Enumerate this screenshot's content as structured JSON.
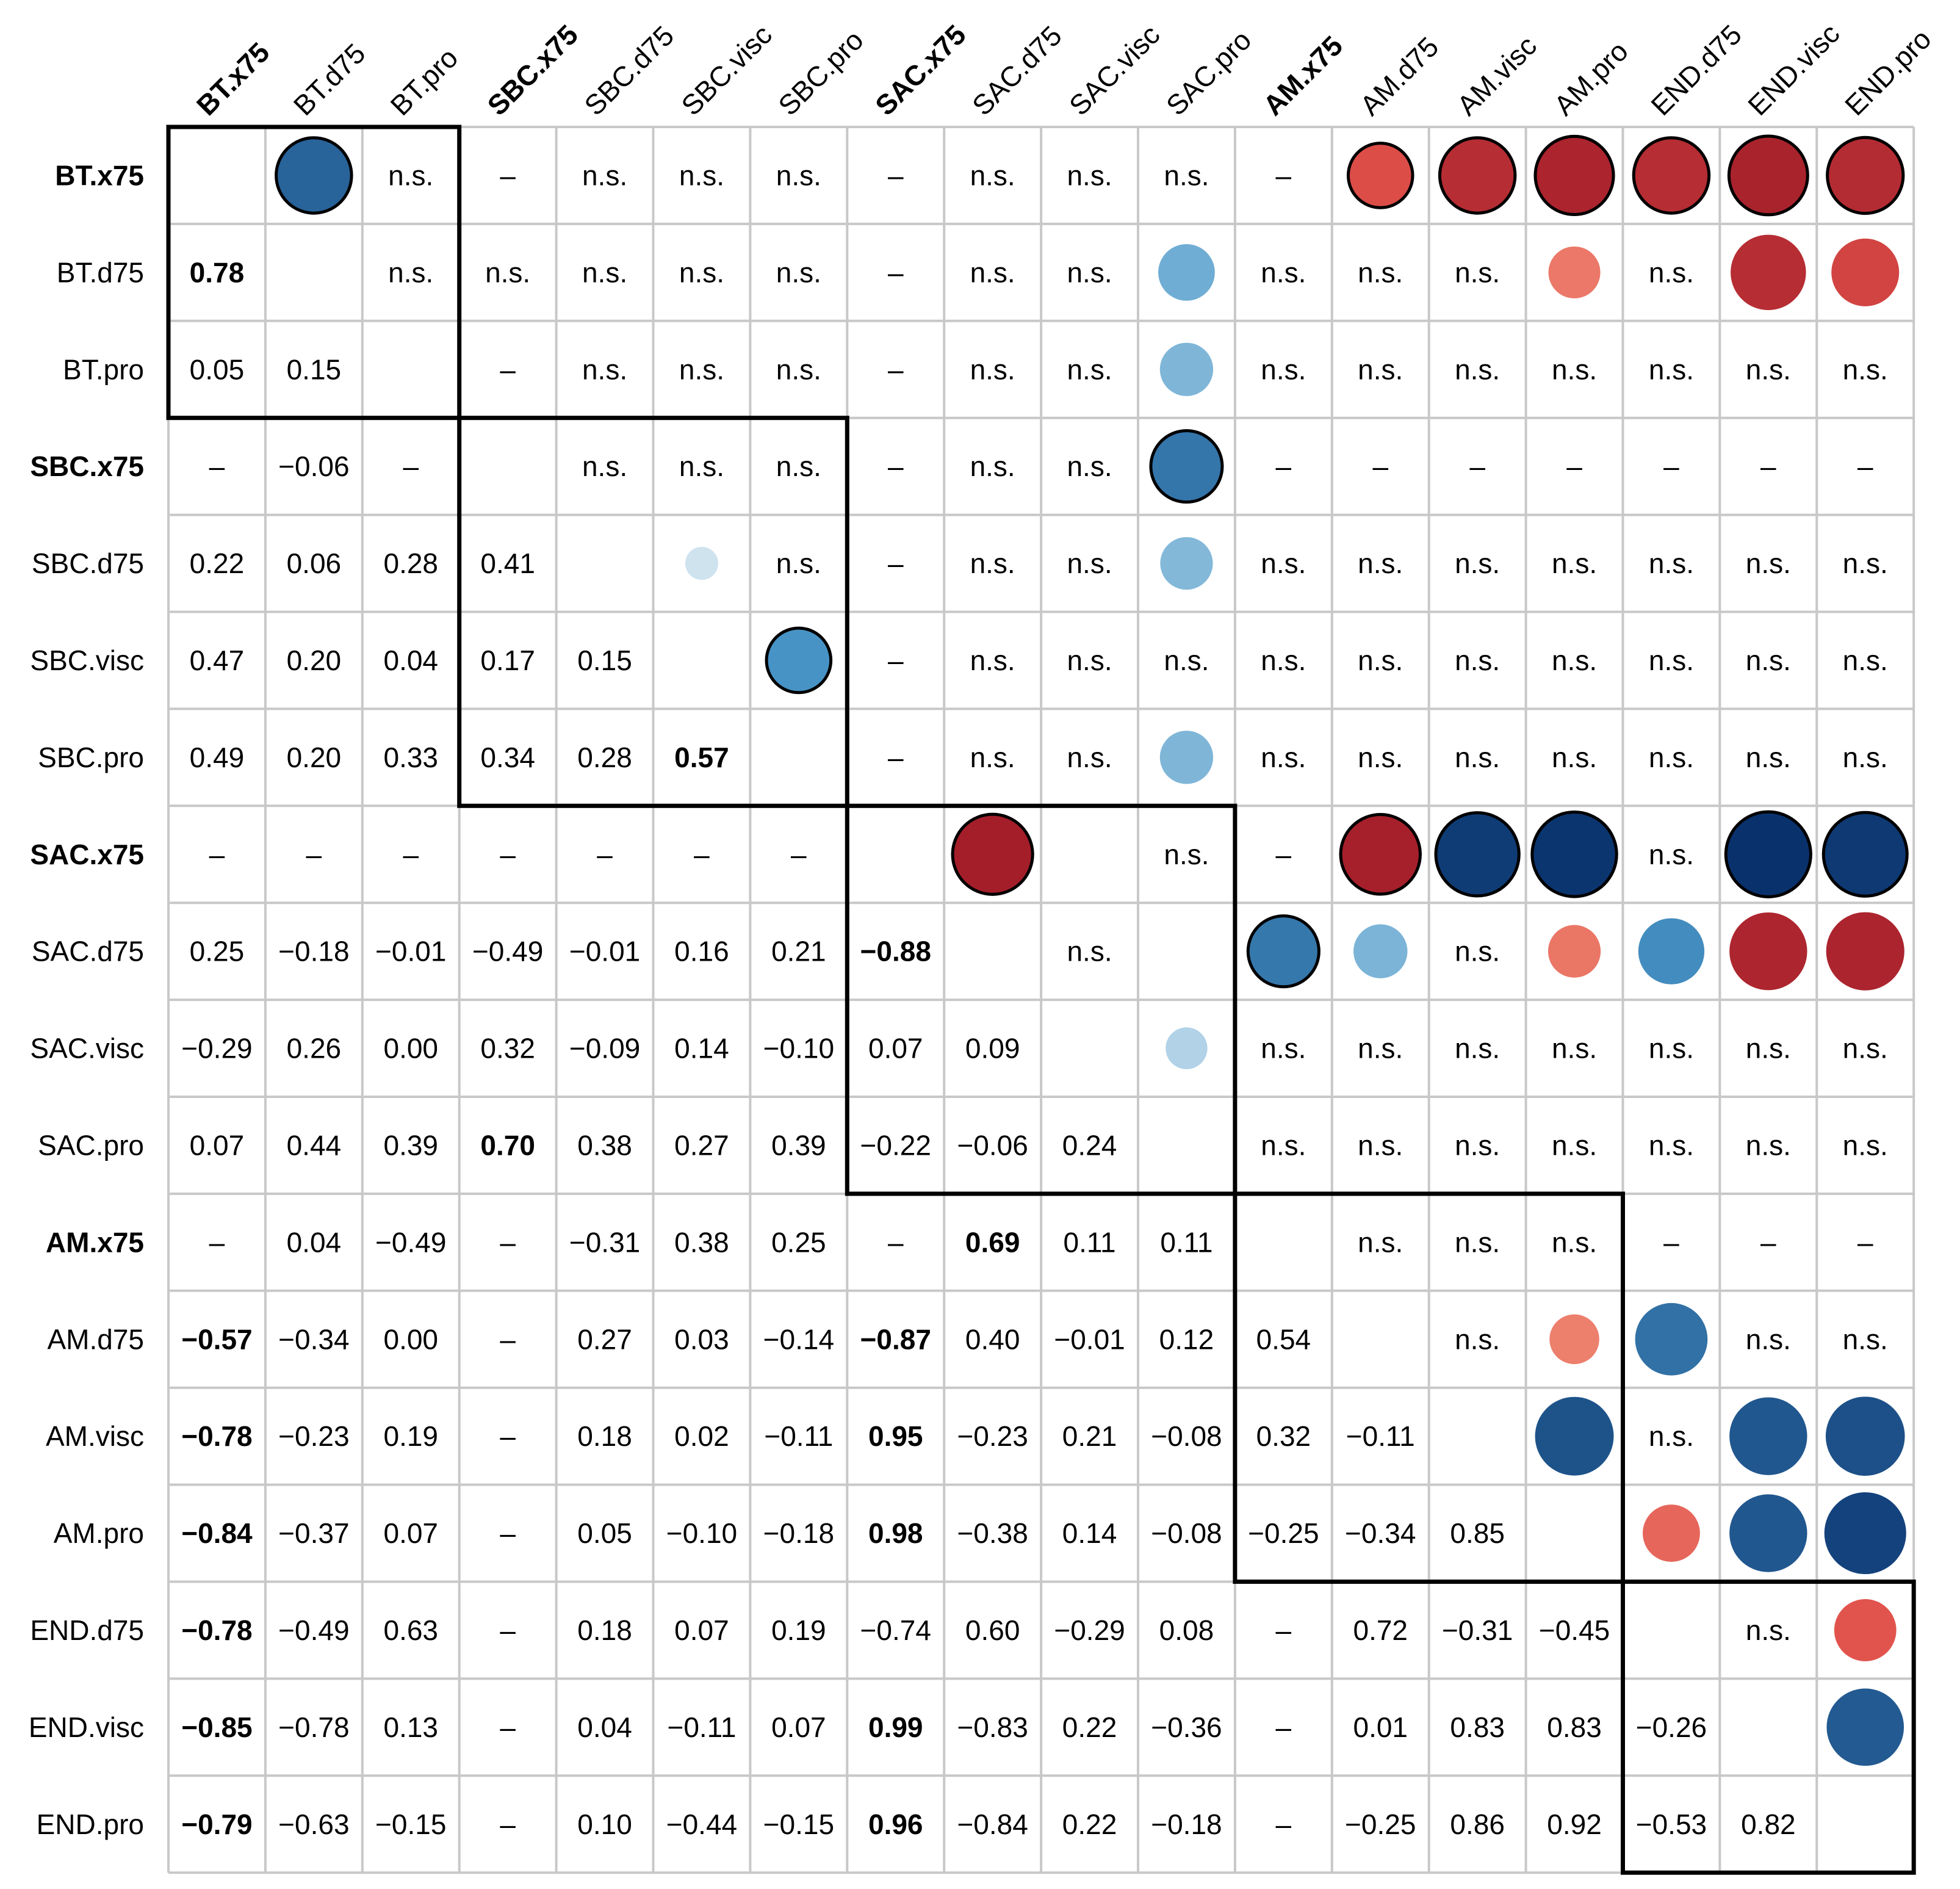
{
  "chart_data": {
    "type": "heatmap",
    "title": "",
    "variables": [
      "BT.x75",
      "BT.d75",
      "BT.pro",
      "SBC.x75",
      "SBC.d75",
      "SBC.visc",
      "SBC.pro",
      "SAC.x75",
      "SAC.d75",
      "SAC.visc",
      "SAC.pro",
      "AM.x75",
      "AM.d75",
      "AM.visc",
      "AM.pro",
      "END.d75",
      "END.visc",
      "END.pro"
    ],
    "bold_labels": [
      "BT.x75",
      "SBC.x75",
      "SAC.x75",
      "AM.x75"
    ],
    "groups": [
      {
        "name": "BT",
        "start": 0,
        "end": 2
      },
      {
        "name": "SBC",
        "start": 3,
        "end": 6
      },
      {
        "name": "SAC",
        "start": 7,
        "end": 10
      },
      {
        "name": "AM",
        "start": 11,
        "end": 14
      },
      {
        "name": "END",
        "start": 15,
        "end": 17
      }
    ],
    "lower_triangle": [
      [],
      [
        "0.78"
      ],
      [
        "0.05",
        "0.15"
      ],
      [
        "–",
        "−0.06",
        "–"
      ],
      [
        "0.22",
        "0.06",
        "0.28",
        "0.41"
      ],
      [
        "0.47",
        "0.20",
        "0.04",
        "0.17",
        "0.15"
      ],
      [
        "0.49",
        "0.20",
        "0.33",
        "0.34",
        "0.28",
        "0.57"
      ],
      [
        "–",
        "–",
        "–",
        "–",
        "–",
        "–",
        "–"
      ],
      [
        "0.25",
        "−0.18",
        "−0.01",
        "−0.49",
        "−0.01",
        "0.16",
        "0.21",
        "−0.88"
      ],
      [
        "−0.29",
        "0.26",
        "0.00",
        "0.32",
        "−0.09",
        "0.14",
        "−0.10",
        "0.07",
        "0.09"
      ],
      [
        "0.07",
        "0.44",
        "0.39",
        "0.70",
        "0.38",
        "0.27",
        "0.39",
        "−0.22",
        "−0.06",
        "0.24"
      ],
      [
        "–",
        "0.04",
        "−0.49",
        "–",
        "−0.31",
        "0.38",
        "0.25",
        "–",
        "0.69",
        "0.11",
        "0.11"
      ],
      [
        "−0.57",
        "−0.34",
        "0.00",
        "–",
        "0.27",
        "0.03",
        "−0.14",
        "−0.87",
        "0.40",
        "−0.01",
        "0.12",
        "0.54"
      ],
      [
        "−0.78",
        "−0.23",
        "0.19",
        "–",
        "0.18",
        "0.02",
        "−0.11",
        "0.95",
        "−0.23",
        "0.21",
        "−0.08",
        "0.32",
        "−0.11"
      ],
      [
        "−0.84",
        "−0.37",
        "0.07",
        "–",
        "0.05",
        "−0.10",
        "−0.18",
        "0.98",
        "−0.38",
        "0.14",
        "−0.08",
        "−0.25",
        "−0.34",
        "0.85"
      ],
      [
        "−0.78",
        "−0.49",
        "0.63",
        "–",
        "0.18",
        "0.07",
        "0.19",
        "−0.74",
        "0.60",
        "−0.29",
        "0.08",
        "–",
        "0.72",
        "−0.31",
        "−0.45"
      ],
      [
        "−0.85",
        "−0.78",
        "0.13",
        "–",
        "0.04",
        "−0.11",
        "0.07",
        "0.99",
        "−0.83",
        "0.22",
        "−0.36",
        "–",
        "0.01",
        "0.83",
        "0.83",
        "−0.26"
      ],
      [
        "−0.79",
        "−0.63",
        "−0.15",
        "–",
        "0.10",
        "−0.44",
        "−0.15",
        "0.96",
        "−0.84",
        "0.22",
        "−0.18",
        "–",
        "−0.25",
        "0.86",
        "0.92",
        "−0.53",
        "0.82"
      ]
    ],
    "lower_bold": [
      [
        1,
        0
      ],
      [
        6,
        5
      ],
      [
        8,
        7
      ],
      [
        10,
        3
      ],
      [
        11,
        8
      ],
      [
        12,
        0
      ],
      [
        12,
        7
      ],
      [
        13,
        0
      ],
      [
        13,
        7
      ],
      [
        14,
        0
      ],
      [
        14,
        7
      ],
      [
        15,
        0
      ],
      [
        16,
        0
      ],
      [
        16,
        7
      ],
      [
        17,
        0
      ],
      [
        17,
        7
      ]
    ],
    "upper_labels": {
      "ns": "n.s.",
      "dash": "–",
      "ns_cells": [
        [
          0,
          2
        ],
        [
          0,
          4
        ],
        [
          0,
          5
        ],
        [
          0,
          6
        ],
        [
          0,
          8
        ],
        [
          0,
          9
        ],
        [
          0,
          10
        ],
        [
          1,
          2
        ],
        [
          1,
          3
        ],
        [
          1,
          4
        ],
        [
          1,
          5
        ],
        [
          1,
          6
        ],
        [
          1,
          8
        ],
        [
          1,
          9
        ],
        [
          1,
          11
        ],
        [
          1,
          12
        ],
        [
          1,
          13
        ],
        [
          1,
          15
        ],
        [
          2,
          4
        ],
        [
          2,
          5
        ],
        [
          2,
          6
        ],
        [
          2,
          8
        ],
        [
          2,
          9
        ],
        [
          2,
          11
        ],
        [
          2,
          12
        ],
        [
          2,
          13
        ],
        [
          2,
          14
        ],
        [
          2,
          15
        ],
        [
          2,
          16
        ],
        [
          2,
          17
        ],
        [
          3,
          4
        ],
        [
          3,
          5
        ],
        [
          3,
          6
        ],
        [
          3,
          8
        ],
        [
          3,
          9
        ],
        [
          4,
          6
        ],
        [
          4,
          8
        ],
        [
          4,
          9
        ],
        [
          4,
          11
        ],
        [
          4,
          12
        ],
        [
          4,
          13
        ],
        [
          4,
          14
        ],
        [
          4,
          15
        ],
        [
          4,
          16
        ],
        [
          4,
          17
        ],
        [
          5,
          8
        ],
        [
          5,
          9
        ],
        [
          5,
          10
        ],
        [
          5,
          11
        ],
        [
          5,
          12
        ],
        [
          5,
          13
        ],
        [
          5,
          14
        ],
        [
          5,
          15
        ],
        [
          5,
          16
        ],
        [
          5,
          17
        ],
        [
          6,
          8
        ],
        [
          6,
          9
        ],
        [
          6,
          11
        ],
        [
          6,
          12
        ],
        [
          6,
          13
        ],
        [
          6,
          14
        ],
        [
          6,
          15
        ],
        [
          6,
          16
        ],
        [
          6,
          17
        ],
        [
          7,
          10
        ],
        [
          7,
          15
        ],
        [
          8,
          9
        ],
        [
          8,
          13
        ],
        [
          9,
          11
        ],
        [
          9,
          12
        ],
        [
          9,
          13
        ],
        [
          9,
          14
        ],
        [
          9,
          15
        ],
        [
          9,
          16
        ],
        [
          9,
          17
        ],
        [
          10,
          11
        ],
        [
          10,
          12
        ],
        [
          10,
          13
        ],
        [
          10,
          14
        ],
        [
          10,
          15
        ],
        [
          10,
          16
        ],
        [
          10,
          17
        ],
        [
          11,
          12
        ],
        [
          11,
          13
        ],
        [
          11,
          14
        ],
        [
          12,
          13
        ],
        [
          12,
          16
        ],
        [
          12,
          17
        ],
        [
          13,
          15
        ],
        [
          15,
          16
        ]
      ],
      "dash_cells": [
        [
          0,
          3
        ],
        [
          0,
          7
        ],
        [
          0,
          11
        ],
        [
          1,
          7
        ],
        [
          2,
          3
        ],
        [
          2,
          7
        ],
        [
          3,
          7
        ],
        [
          3,
          11
        ],
        [
          3,
          12
        ],
        [
          3,
          13
        ],
        [
          3,
          14
        ],
        [
          3,
          15
        ],
        [
          3,
          16
        ],
        [
          3,
          17
        ],
        [
          4,
          7
        ],
        [
          5,
          7
        ],
        [
          6,
          7
        ],
        [
          7,
          11
        ],
        [
          11,
          15
        ],
        [
          11,
          16
        ],
        [
          11,
          17
        ]
      ]
    },
    "circles": [
      {
        "row": 0,
        "col": 1,
        "value": 0.78,
        "sig": true
      },
      {
        "row": 0,
        "col": 12,
        "value": -0.57,
        "sig": true
      },
      {
        "row": 0,
        "col": 13,
        "value": -0.78,
        "sig": true
      },
      {
        "row": 0,
        "col": 14,
        "value": -0.84,
        "sig": true
      },
      {
        "row": 0,
        "col": 15,
        "value": -0.78,
        "sig": true
      },
      {
        "row": 0,
        "col": 16,
        "value": -0.85,
        "sig": true
      },
      {
        "row": 0,
        "col": 17,
        "value": -0.79,
        "sig": true
      },
      {
        "row": 1,
        "col": 10,
        "value": 0.44,
        "sig": false
      },
      {
        "row": 1,
        "col": 14,
        "value": -0.37,
        "sig": false
      },
      {
        "row": 1,
        "col": 16,
        "value": -0.78,
        "sig": false
      },
      {
        "row": 1,
        "col": 17,
        "value": -0.63,
        "sig": false
      },
      {
        "row": 2,
        "col": 10,
        "value": 0.39,
        "sig": false
      },
      {
        "row": 3,
        "col": 10,
        "value": 0.7,
        "sig": true
      },
      {
        "row": 4,
        "col": 5,
        "value": 0.15,
        "sig": false
      },
      {
        "row": 4,
        "col": 10,
        "value": 0.38,
        "sig": false
      },
      {
        "row": 5,
        "col": 6,
        "value": 0.57,
        "sig": true
      },
      {
        "row": 6,
        "col": 10,
        "value": 0.39,
        "sig": false
      },
      {
        "row": 7,
        "col": 8,
        "value": -0.88,
        "sig": true
      },
      {
        "row": 7,
        "col": 12,
        "value": -0.87,
        "sig": true
      },
      {
        "row": 7,
        "col": 13,
        "value": 0.95,
        "sig": true
      },
      {
        "row": 7,
        "col": 14,
        "value": 0.98,
        "sig": true
      },
      {
        "row": 7,
        "col": 16,
        "value": 0.99,
        "sig": true
      },
      {
        "row": 7,
        "col": 17,
        "value": 0.96,
        "sig": true
      },
      {
        "row": 8,
        "col": 11,
        "value": 0.69,
        "sig": true
      },
      {
        "row": 8,
        "col": 12,
        "value": 0.4,
        "sig": false
      },
      {
        "row": 8,
        "col": 14,
        "value": -0.38,
        "sig": false
      },
      {
        "row": 8,
        "col": 15,
        "value": 0.6,
        "sig": false
      },
      {
        "row": 8,
        "col": 16,
        "value": -0.83,
        "sig": false
      },
      {
        "row": 8,
        "col": 17,
        "value": -0.84,
        "sig": false
      },
      {
        "row": 9,
        "col": 10,
        "value": 0.24,
        "sig": false
      },
      {
        "row": 12,
        "col": 14,
        "value": -0.34,
        "sig": false
      },
      {
        "row": 12,
        "col": 15,
        "value": 0.72,
        "sig": false
      },
      {
        "row": 13,
        "col": 14,
        "value": 0.85,
        "sig": false
      },
      {
        "row": 13,
        "col": 16,
        "value": 0.83,
        "sig": false
      },
      {
        "row": 13,
        "col": 17,
        "value": 0.86,
        "sig": false
      },
      {
        "row": 14,
        "col": 15,
        "value": -0.45,
        "sig": false
      },
      {
        "row": 14,
        "col": 16,
        "value": 0.83,
        "sig": false
      },
      {
        "row": 14,
        "col": 17,
        "value": 0.92,
        "sig": false
      },
      {
        "row": 15,
        "col": 17,
        "value": -0.53,
        "sig": false
      },
      {
        "row": 16,
        "col": 17,
        "value": 0.82,
        "sig": false
      }
    ],
    "colors": {
      "pos_light": "#e0ecf4",
      "pos_mid": "#4a98c9",
      "pos_dark": "#08306b",
      "neg_light": "#fbb595",
      "neg_mid": "#e0504a",
      "neg_dark": "#8e0c1e",
      "grid": "#c8c8c8",
      "box": "#000000",
      "text": "#000000"
    }
  }
}
